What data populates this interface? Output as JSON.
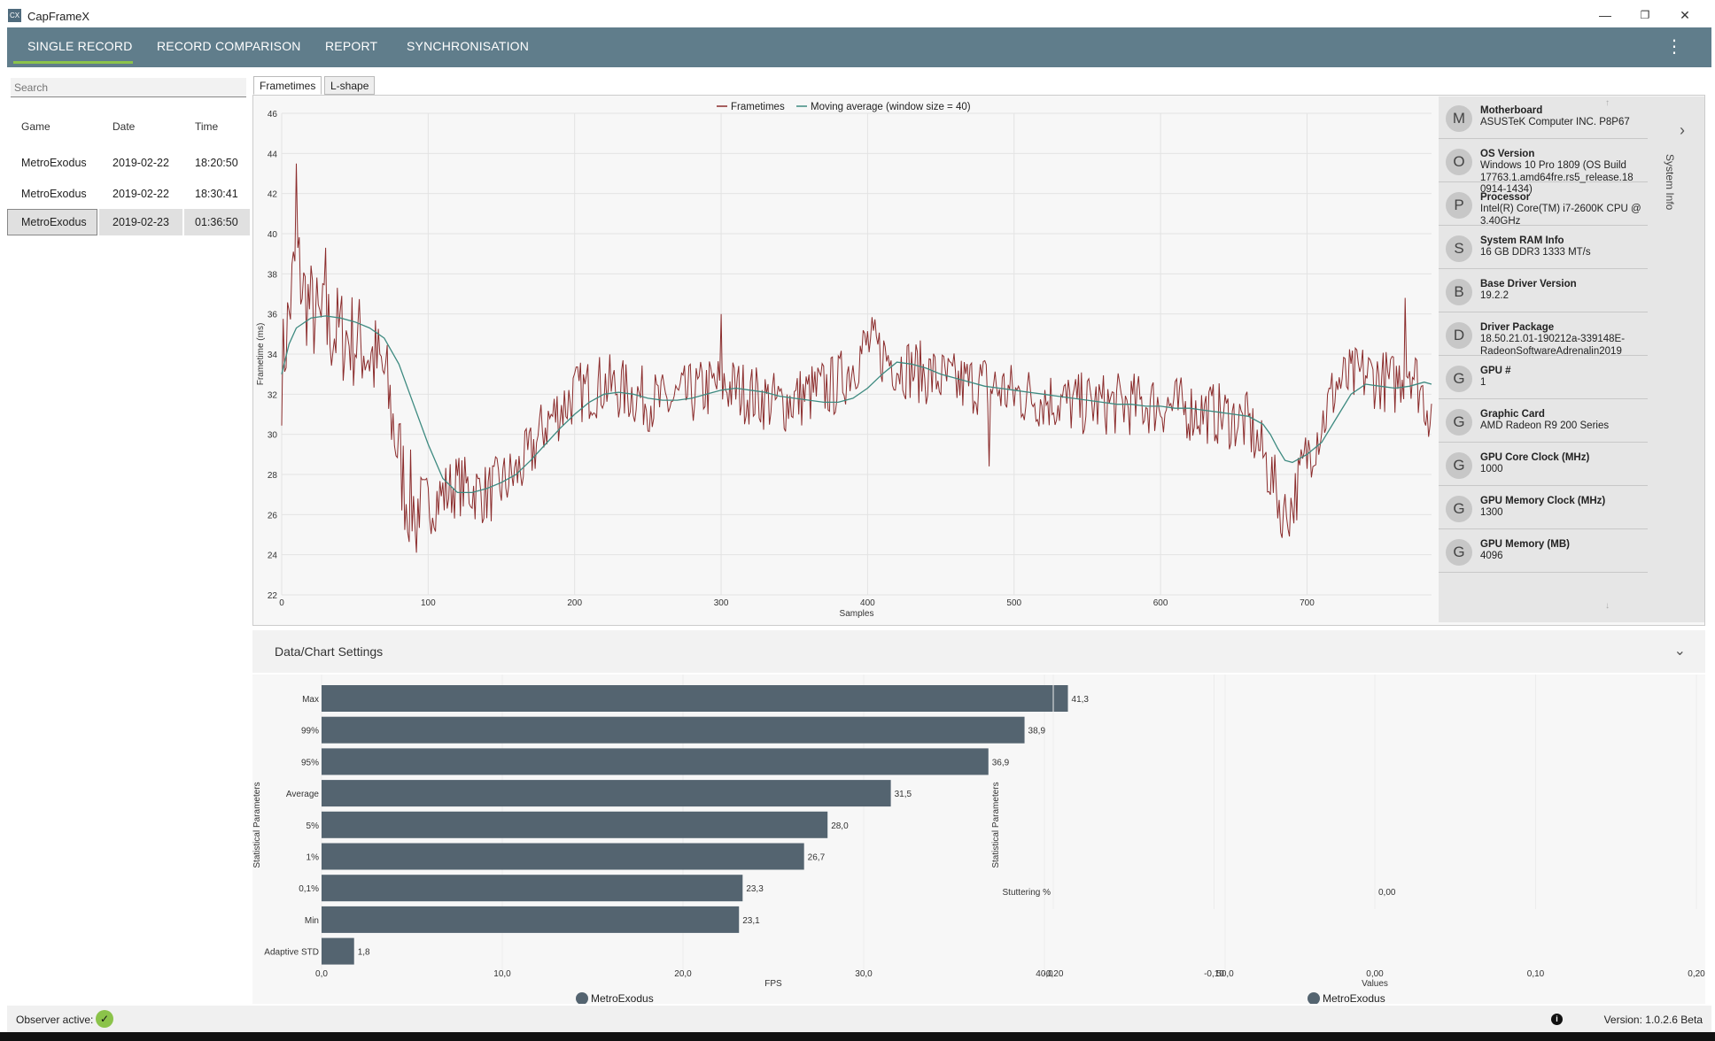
{
  "window": {
    "title": "CapFrameX",
    "app_icon": "CX",
    "minimize": "—",
    "restore": "❐",
    "close": "✕"
  },
  "nav": {
    "tabs": [
      "SINGLE RECORD",
      "RECORD COMPARISON",
      "REPORT",
      "SYNCHRONISATION"
    ],
    "active": "SINGLE RECORD",
    "menu_icon": "⋮"
  },
  "records": {
    "search_placeholder": "Search",
    "headers": [
      "Game",
      "Date",
      "Time"
    ],
    "rows": [
      {
        "game": "MetroExodus",
        "date": "2019-02-22",
        "time": "18:20:50"
      },
      {
        "game": "MetroExodus",
        "date": "2019-02-22",
        "time": "18:30:41"
      },
      {
        "game": "MetroExodus",
        "date": "2019-02-23",
        "time": "01:36:50"
      }
    ],
    "selected_index": 2
  },
  "chart_tabs": [
    "Frametimes",
    "L-shape"
  ],
  "chart_data": [
    {
      "type": "line",
      "legend": [
        "Frametimes",
        "Moving average (window size = 40)"
      ],
      "legend_placement": "top-center",
      "xlabel": "Samples",
      "ylabel": "Frametime (ms)",
      "xlim": [
        0,
        785
      ],
      "ylim": [
        22,
        46
      ],
      "x_ticks": [
        0,
        100,
        200,
        300,
        400,
        500,
        600,
        700
      ],
      "y_ticks": [
        22,
        24,
        26,
        28,
        30,
        32,
        34,
        36,
        38,
        40,
        42,
        44,
        46
      ],
      "grid": true,
      "series": [
        {
          "name": "Frametimes",
          "color": "#8b2c2c",
          "noise": 1.6,
          "x": [
            0,
            5,
            10,
            15,
            25,
            40,
            55,
            70,
            80,
            85,
            90,
            100,
            120,
            140,
            160,
            170,
            180,
            200,
            220,
            240,
            260,
            280,
            300,
            320,
            340,
            360,
            380,
            400,
            420,
            440,
            460,
            480,
            500,
            520,
            540,
            560,
            580,
            600,
            620,
            640,
            660,
            670,
            680,
            685,
            690,
            700,
            710,
            720,
            740,
            760,
            770,
            785
          ],
          "y": [
            33,
            36,
            39,
            37,
            35.5,
            35,
            34.5,
            33,
            29,
            27,
            26.5,
            26.5,
            27.5,
            27,
            28,
            29,
            30.5,
            32,
            32.5,
            32,
            31.5,
            32,
            32.5,
            32,
            31.5,
            32,
            32.5,
            34.5,
            33.5,
            33,
            32.5,
            32.5,
            32,
            31.8,
            31.5,
            31.5,
            31.5,
            31.5,
            31.2,
            31,
            30.5,
            29,
            27,
            26,
            26.5,
            29,
            30.5,
            32.5,
            33,
            32.5,
            33.5,
            31
          ]
        },
        {
          "name": "Moving average (window size = 40)",
          "color": "#3d8a80",
          "x": [
            0,
            5,
            10,
            20,
            30,
            40,
            50,
            60,
            70,
            80,
            90,
            100,
            110,
            120,
            130,
            140,
            150,
            160,
            170,
            180,
            190,
            200,
            210,
            220,
            230,
            240,
            250,
            260,
            270,
            280,
            290,
            300,
            310,
            320,
            330,
            340,
            350,
            360,
            370,
            380,
            390,
            400,
            410,
            420,
            430,
            440,
            450,
            460,
            470,
            480,
            490,
            500,
            510,
            520,
            530,
            540,
            550,
            560,
            570,
            580,
            590,
            600,
            610,
            620,
            630,
            640,
            650,
            660,
            670,
            675,
            680,
            685,
            690,
            700,
            710,
            720,
            730,
            740,
            750,
            760,
            770,
            780,
            785
          ],
          "y": [
            33,
            34.5,
            35.3,
            35.8,
            35.9,
            35.8,
            35.6,
            35.3,
            34.8,
            33.5,
            31.5,
            29.5,
            27.8,
            27.1,
            27.1,
            27.3,
            27.6,
            28,
            28.7,
            29.5,
            30.3,
            31,
            31.6,
            32,
            32.1,
            32,
            31.8,
            31.7,
            31.7,
            31.8,
            32,
            32.2,
            32.3,
            32.2,
            32.1,
            31.9,
            31.8,
            31.7,
            31.6,
            31.6,
            31.8,
            32.3,
            33,
            33.6,
            33.5,
            33.3,
            33,
            32.8,
            32.6,
            32.4,
            32.3,
            32.2,
            32.1,
            32,
            31.9,
            31.8,
            31.7,
            31.6,
            31.5,
            31.5,
            31.4,
            31.4,
            31.3,
            31.3,
            31.2,
            31.1,
            31,
            30.9,
            30.5,
            30,
            29.3,
            28.7,
            28.6,
            29,
            29.6,
            30.8,
            32,
            32.5,
            32.4,
            32.3,
            32.4,
            32.6,
            32.5
          ]
        }
      ]
    },
    {
      "type": "bar",
      "orientation": "horizontal",
      "categories": [
        "Max",
        "99%",
        "95%",
        "Average",
        "5%",
        "1%",
        "0,1%",
        "Min",
        "Adaptive STD"
      ],
      "values": [
        41.3,
        38.9,
        36.9,
        31.5,
        28.0,
        26.7,
        23.3,
        23.1,
        1.8
      ],
      "value_labels": [
        "41,3",
        "38,9",
        "36,9",
        "31,5",
        "28,0",
        "26,7",
        "23,3",
        "23,1",
        "1,8"
      ],
      "xlabel": "FPS",
      "ylabel": "Statistical Parameters",
      "xlim": [
        0,
        50
      ],
      "x_ticks": [
        "0,0",
        "10,0",
        "20,0",
        "30,0",
        "40,0",
        "50,0"
      ],
      "legend": [
        "MetroExodus"
      ],
      "color": "#546470"
    },
    {
      "type": "bar",
      "orientation": "horizontal",
      "categories": [
        "Stuttering %"
      ],
      "values": [
        0.0
      ],
      "value_labels": [
        "0,00"
      ],
      "xlabel": "Values",
      "ylabel": "Statistical Parameters",
      "xlim": [
        -0.2,
        0.2
      ],
      "x_ticks": [
        "-0,20",
        "-0,10",
        "0,00",
        "0,10",
        "0,20"
      ],
      "legend": [
        "MetroExodus"
      ],
      "color": "#546470"
    }
  ],
  "system_info": {
    "label": "System Info",
    "items": [
      {
        "initial": "M",
        "label": "Motherboard",
        "value": "ASUSTeK Computer INC. P8P67"
      },
      {
        "initial": "O",
        "label": "OS Version",
        "value": "Windows 10 Pro 1809 (OS Build 17763.1.amd64fre.rs5_release.18 0914-1434)"
      },
      {
        "initial": "P",
        "label": "Processor",
        "value": "Intel(R) Core(TM) i7-2600K CPU @ 3.40GHz"
      },
      {
        "initial": "S",
        "label": "System RAM Info",
        "value": "16 GB DDR3 1333 MT/s"
      },
      {
        "initial": "B",
        "label": "Base Driver Version",
        "value": "19.2.2"
      },
      {
        "initial": "D",
        "label": "Driver Package",
        "value": "18.50.21.01-190212a-339148E-RadeonSoftwareAdrenalin2019"
      },
      {
        "initial": "G",
        "label": "GPU #",
        "value": "1"
      },
      {
        "initial": "G",
        "label": "Graphic Card",
        "value": "AMD Radeon R9 200 Series"
      },
      {
        "initial": "G",
        "label": "GPU Core Clock (MHz)",
        "value": "1000"
      },
      {
        "initial": "G",
        "label": "GPU Memory Clock (MHz)",
        "value": "1300"
      },
      {
        "initial": "G",
        "label": "GPU Memory (MB)",
        "value": "4096"
      }
    ]
  },
  "settings": {
    "title": "Data/Chart Settings",
    "chevron": "⌄"
  },
  "status": {
    "observer_label": "Observer active:",
    "observer_icon": "check-icon",
    "observer_check": "✓",
    "version_label": "Version:  1.0.2.6 Beta",
    "info_glyph": "i"
  },
  "colors": {
    "nav_bg": "#607d8b",
    "accent": "#8bc34a",
    "frametime_line": "#8b2c2c",
    "moving_avg_line": "#3d8a80",
    "bar": "#546470"
  }
}
